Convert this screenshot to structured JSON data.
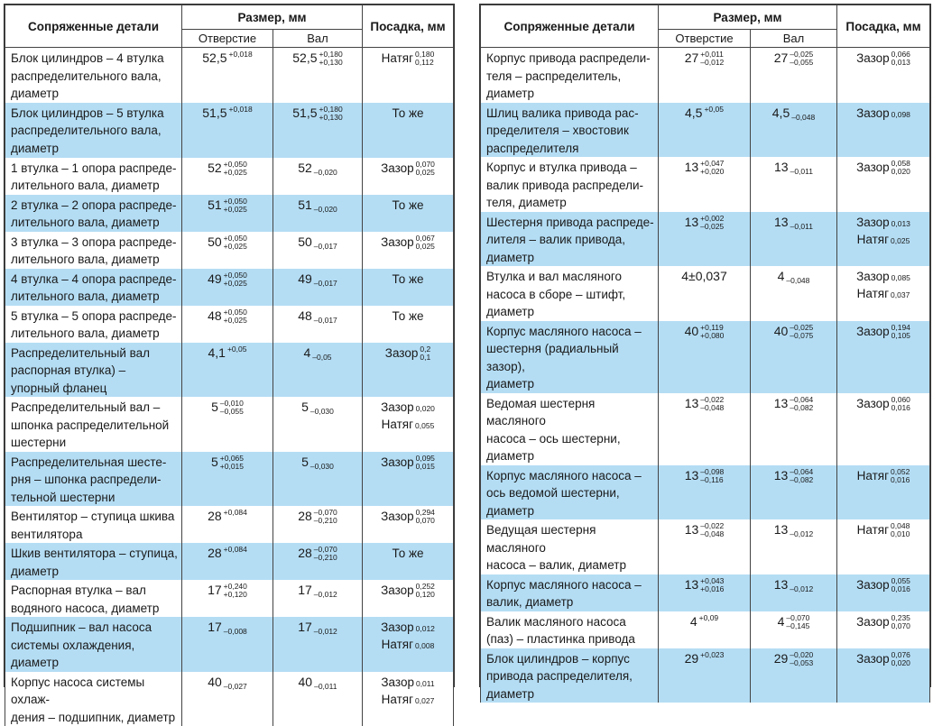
{
  "headers": {
    "details": "Сопряженные детали",
    "size": "Размер, мм",
    "hole": "Отверстие",
    "shaft": "Вал",
    "fit": "Посадка, мм"
  },
  "left_rows": [
    {
      "detail": [
        "Блок цилиндров – 4 втулка",
        "распределительного вала,",
        "диаметр"
      ],
      "hole": {
        "base": "52,5",
        "up": "+0,018",
        "low": ""
      },
      "shaft": {
        "base": "52,5",
        "up": "+0,180",
        "low": "+0,130"
      },
      "fit": [
        {
          "word": "Натяг",
          "up": "0,180",
          "low": "0,112"
        }
      ]
    },
    {
      "detail": [
        "Блок цилиндров – 5 втулка",
        "распределительного вала,",
        "диаметр"
      ],
      "hole": {
        "base": "51,5",
        "up": "+0,018",
        "low": ""
      },
      "shaft": {
        "base": "51,5",
        "up": "+0,180",
        "low": "+0,130"
      },
      "fit": [
        {
          "word": "То же",
          "up": "",
          "low": ""
        }
      ]
    },
    {
      "detail": [
        "1 втулка – 1 опора распреде-",
        "лительного вала, диаметр"
      ],
      "hole": {
        "base": "52",
        "up": "+0,050",
        "low": "+0,025"
      },
      "shaft": {
        "base": "52",
        "up": "",
        "low": "–0,020"
      },
      "fit": [
        {
          "word": "Зазор",
          "up": "0,070",
          "low": "0,025"
        }
      ]
    },
    {
      "detail": [
        "2 втулка – 2 опора распреде-",
        "лительного вала, диаметр"
      ],
      "hole": {
        "base": "51",
        "up": "+0,050",
        "low": "+0,025"
      },
      "shaft": {
        "base": "51",
        "up": "",
        "low": "–0,020"
      },
      "fit": [
        {
          "word": "То же",
          "up": "",
          "low": ""
        }
      ]
    },
    {
      "detail": [
        "3 втулка – 3 опора распреде-",
        "лительного вала, диаметр"
      ],
      "hole": {
        "base": "50",
        "up": "+0,050",
        "low": "+0,025"
      },
      "shaft": {
        "base": "50",
        "up": "",
        "low": "–0,017"
      },
      "fit": [
        {
          "word": "Зазор",
          "up": "0,067",
          "low": "0,025"
        }
      ]
    },
    {
      "detail": [
        "4 втулка – 4 опора распреде-",
        "лительного вала, диаметр"
      ],
      "hole": {
        "base": "49",
        "up": "+0,050",
        "low": "+0,025"
      },
      "shaft": {
        "base": "49",
        "up": "",
        "low": "–0,017"
      },
      "fit": [
        {
          "word": "То же",
          "up": "",
          "low": ""
        }
      ]
    },
    {
      "detail": [
        "5 втулка – 5 опора распреде-",
        "лительного вала, диаметр"
      ],
      "hole": {
        "base": "48",
        "up": "+0,050",
        "low": "+0,025"
      },
      "shaft": {
        "base": "48",
        "up": "",
        "low": "–0,017"
      },
      "fit": [
        {
          "word": "То же",
          "up": "",
          "low": ""
        }
      ]
    },
    {
      "detail": [
        "Распределительный вал",
        "распорная втулка) –",
        "упорный фланец"
      ],
      "hole": {
        "base": "4,1",
        "up": "+0,05",
        "low": ""
      },
      "shaft": {
        "base": "4",
        "up": "",
        "low": "–0,05"
      },
      "fit": [
        {
          "word": "Зазор",
          "up": "0,2",
          "low": "0,1"
        }
      ]
    },
    {
      "detail": [
        "Распределительный вал –",
        "шпонка распределительной",
        "шестерни"
      ],
      "hole": {
        "base": "5",
        "up": "–0,010",
        "low": "–0,055"
      },
      "shaft": {
        "base": "5",
        "up": "",
        "low": "–0,030"
      },
      "fit": [
        {
          "word": "Зазор",
          "up": "",
          "low": "0,020"
        },
        {
          "word": "Натяг",
          "up": "",
          "low": "0,055"
        }
      ]
    },
    {
      "detail": [
        "Распределительная шесте-",
        "рня – шпонка распредели-",
        "тельной шестерни"
      ],
      "hole": {
        "base": "5",
        "up": "+0,065",
        "low": "+0,015"
      },
      "shaft": {
        "base": "5",
        "up": "",
        "low": "–0,030"
      },
      "fit": [
        {
          "word": "Зазор",
          "up": "0,095",
          "low": "0,015"
        }
      ]
    },
    {
      "detail": [
        "Вентилятор – ступица шкива",
        "вентилятора"
      ],
      "hole": {
        "base": "28",
        "up": "+0,084",
        "low": ""
      },
      "shaft": {
        "base": "28",
        "up": "–0,070",
        "low": "–0,210"
      },
      "fit": [
        {
          "word": "Зазор",
          "up": "0,294",
          "low": "0,070"
        }
      ]
    },
    {
      "detail": [
        "Шкив вентилятора – ступица,",
        "диаметр"
      ],
      "hole": {
        "base": "28",
        "up": "+0,084",
        "low": ""
      },
      "shaft": {
        "base": "28",
        "up": "–0,070",
        "low": "–0,210"
      },
      "fit": [
        {
          "word": "То же",
          "up": "",
          "low": ""
        }
      ]
    },
    {
      "detail": [
        "Распорная втулка – вал",
        "водяного насоса, диаметр"
      ],
      "hole": {
        "base": "17",
        "up": "+0,240",
        "low": "+0,120"
      },
      "shaft": {
        "base": "17",
        "up": "",
        "low": "–0,012"
      },
      "fit": [
        {
          "word": "Зазор",
          "up": "0,252",
          "low": "0,120"
        }
      ]
    },
    {
      "detail": [
        "Подшипник – вал насоса",
        "системы охлаждения, диаметр"
      ],
      "hole": {
        "base": "17",
        "up": "",
        "low": "–0,008"
      },
      "shaft": {
        "base": "17",
        "up": "",
        "low": "–0,012"
      },
      "fit": [
        {
          "word": "Зазор",
          "up": "",
          "low": "0,012"
        },
        {
          "word": "Натяг",
          "up": "",
          "low": "0,008"
        }
      ]
    },
    {
      "detail": [
        "Корпус насоса системы охлаж-",
        "дения – подшипник, диаметр"
      ],
      "hole": {
        "base": "40",
        "up": "",
        "low": "–0,027"
      },
      "shaft": {
        "base": "40",
        "up": "",
        "low": "–0,011"
      },
      "fit": [
        {
          "word": "Зазор",
          "up": "",
          "low": "0,011"
        },
        {
          "word": "Натяг",
          "up": "",
          "low": "0,027"
        }
      ]
    }
  ],
  "right_rows": [
    {
      "detail": [
        "Корпус привода распредели-",
        "теля – распределитель,",
        "диаметр"
      ],
      "hole": {
        "base": "27",
        "up": "+0,011",
        "low": "–0,012"
      },
      "shaft": {
        "base": "27",
        "up": "–0,025",
        "low": "–0,055"
      },
      "fit": [
        {
          "word": "Зазор",
          "up": "0,066",
          "low": "0,013"
        }
      ]
    },
    {
      "detail": [
        "Шлиц валика привода рас-",
        "пределителя – хвостовик",
        "распределителя"
      ],
      "hole": {
        "base": "4,5",
        "up": "+0,05",
        "low": ""
      },
      "shaft": {
        "base": "4,5",
        "up": "",
        "low": "–0,048"
      },
      "fit": [
        {
          "word": "Зазор",
          "up": "",
          "low": "0,098"
        }
      ]
    },
    {
      "detail": [
        "Корпус и втулка привода –",
        "валик привода распредели-",
        "теля, диаметр"
      ],
      "hole": {
        "base": "13",
        "up": "+0,047",
        "low": "+0,020"
      },
      "shaft": {
        "base": "13",
        "up": "",
        "low": "–0,011"
      },
      "fit": [
        {
          "word": "Зазор",
          "up": "0,058",
          "low": "0,020"
        }
      ]
    },
    {
      "detail": [
        "Шестерня привода распреде-",
        "лителя – валик привода,",
        "диаметр"
      ],
      "hole": {
        "base": "13",
        "up": "+0,002",
        "low": "–0,025"
      },
      "shaft": {
        "base": "13",
        "up": "",
        "low": "–0,011"
      },
      "fit": [
        {
          "word": "Зазор",
          "up": "",
          "low": "0,013"
        },
        {
          "word": "Натяг",
          "up": "",
          "low": "0,025"
        }
      ]
    },
    {
      "detail": [
        "Втулка и вал масляного",
        "насоса в сборе – штифт,",
        "диаметр"
      ],
      "hole": {
        "base": "4±0,037",
        "up": "",
        "low": ""
      },
      "shaft": {
        "base": "4",
        "up": "",
        "low": "–0,048"
      },
      "fit": [
        {
          "word": "Зазор",
          "up": "",
          "low": "0,085"
        },
        {
          "word": "Натяг",
          "up": "",
          "low": "0,037"
        }
      ]
    },
    {
      "detail": [
        "Корпус масляного насоса –",
        "шестерня (радиальный зазор),",
        "диаметр"
      ],
      "hole": {
        "base": "40",
        "up": "+0,119",
        "low": "+0,080"
      },
      "shaft": {
        "base": "40",
        "up": "–0,025",
        "low": "–0,075"
      },
      "fit": [
        {
          "word": "Зазор",
          "up": "0,194",
          "low": "0,105"
        }
      ]
    },
    {
      "detail": [
        "Ведомая шестерня масляного",
        "насоса – ось шестерни,",
        "диаметр"
      ],
      "hole": {
        "base": "13",
        "up": "–0,022",
        "low": "–0,048"
      },
      "shaft": {
        "base": "13",
        "up": "–0,064",
        "low": "–0,082"
      },
      "fit": [
        {
          "word": "Зазор",
          "up": "0,060",
          "low": "0,016"
        }
      ]
    },
    {
      "detail": [
        "Корпус масляного насоса –",
        "ось ведомой шестерни,",
        "диаметр"
      ],
      "hole": {
        "base": "13",
        "up": "–0,098",
        "low": "–0,116"
      },
      "shaft": {
        "base": "13",
        "up": "–0,064",
        "low": "–0,082"
      },
      "fit": [
        {
          "word": "Натяг",
          "up": "0,052",
          "low": "0,016"
        }
      ]
    },
    {
      "detail": [
        "Ведущая шестерня масляного",
        "насоса – валик, диаметр"
      ],
      "hole": {
        "base": "13",
        "up": "–0,022",
        "low": "–0,048"
      },
      "shaft": {
        "base": "13",
        "up": "",
        "low": "–0,012"
      },
      "fit": [
        {
          "word": "Натяг",
          "up": "0,048",
          "low": "0,010"
        }
      ]
    },
    {
      "detail": [
        "Корпус масляного насоса –",
        "валик, диаметр"
      ],
      "hole": {
        "base": "13",
        "up": "+0,043",
        "low": "+0,016"
      },
      "shaft": {
        "base": "13",
        "up": "",
        "low": "–0,012"
      },
      "fit": [
        {
          "word": "Зазор",
          "up": "0,055",
          "low": "0,016"
        }
      ]
    },
    {
      "detail": [
        "Валик масляного насоса",
        "(паз) – пластинка привода"
      ],
      "hole": {
        "base": "4",
        "up": "+0,09",
        "low": ""
      },
      "shaft": {
        "base": "4",
        "up": "–0,070",
        "low": "–0,145"
      },
      "fit": [
        {
          "word": "Зазор",
          "up": "0,235",
          "low": "0,070"
        }
      ]
    },
    {
      "detail": [
        "Блок цилиндров – корпус",
        "привода распределителя,",
        "диаметр"
      ],
      "hole": {
        "base": "29",
        "up": "+0,023",
        "low": ""
      },
      "shaft": {
        "base": "29",
        "up": "–0,020",
        "low": "–0,053"
      },
      "fit": [
        {
          "word": "Зазор",
          "up": "0,076",
          "low": "0,020"
        }
      ]
    }
  ]
}
